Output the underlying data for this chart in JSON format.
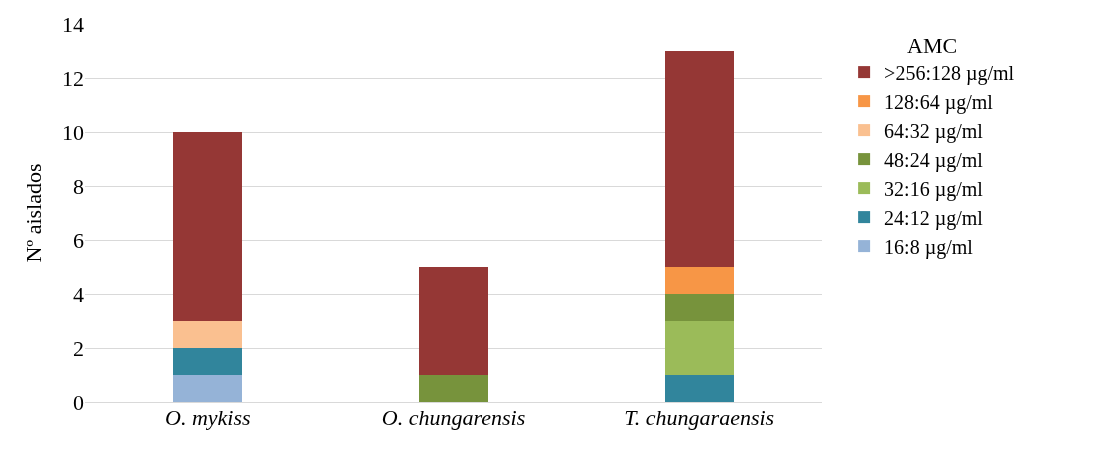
{
  "chart_data": {
    "type": "bar",
    "stacked": true,
    "ylabel": "Nº aislados",
    "legend_title": "AMC",
    "legend": "right",
    "grid": "y",
    "categories": [
      "O. mykiss",
      "O. chungarensis",
      "T. chungaraensis"
    ],
    "ylim": [
      0,
      14
    ],
    "yticks": [
      0,
      2,
      4,
      6,
      8,
      10,
      12,
      14
    ],
    "series": [
      {
        "name": "16:8 µg/ml",
        "color": "#95b3d7",
        "values": [
          1,
          null,
          null
        ]
      },
      {
        "name": "24:12 µg/ml",
        "color": "#31859c",
        "values": [
          1,
          null,
          1
        ]
      },
      {
        "name": "32:16 µg/ml",
        "color": "#9bbb59",
        "values": [
          null,
          null,
          2
        ]
      },
      {
        "name": "48:24 µg/ml",
        "color": "#77933c",
        "values": [
          null,
          1,
          1
        ]
      },
      {
        "name": "64:32 µg/ml",
        "color": "#fac090",
        "values": [
          1,
          null,
          null
        ]
      },
      {
        "name": "128:64 µg/ml",
        "color": "#f79646",
        "values": [
          null,
          null,
          1
        ]
      },
      {
        "name": ">256:128 µg/ml",
        "color": "#953735",
        "values": [
          7,
          4,
          8
        ]
      }
    ]
  }
}
